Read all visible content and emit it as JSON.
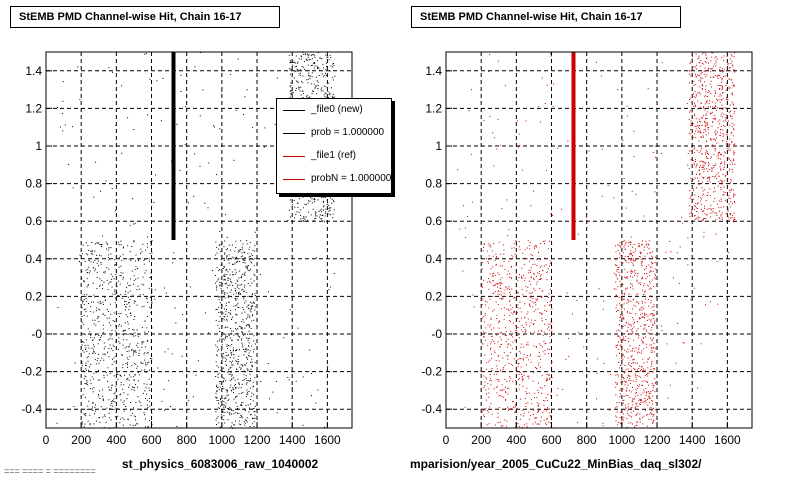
{
  "panels": [
    {
      "title": "StEMB PMD Channel-wise Hit, Chain 16-17",
      "xlabel": "st_physics_6083006_raw_1040002",
      "marker_color": "#000000"
    },
    {
      "title": "StEMB PMD Channel-wise Hit, Chain 16-17",
      "xlabel": "mparision/year_2005_CuCu22_MinBias_daq_sl302/",
      "marker_color": "#cc0000"
    }
  ],
  "legend": {
    "entries": [
      {
        "label": "_file0 (new)",
        "color": "#000000"
      },
      {
        "label": "prob = 1.000000",
        "color": "#000000"
      },
      {
        "label": "_file1 (ref)",
        "color": "#cc0000"
      },
      {
        "label": "probN = 1.000000",
        "color": "#cc0000"
      }
    ]
  },
  "footer_note": "=== ==== = ========",
  "chart_data": [
    {
      "type": "scatter",
      "title": "StEMB PMD Channel-wise Hit, Chain 16-17",
      "xlabel": "st_physics_6083006_raw_1040002",
      "ylabel": "",
      "xlim": [
        0,
        1740
      ],
      "ylim": [
        -0.5,
        1.5
      ],
      "xticks": [
        "0",
        "200",
        "400",
        "600",
        "800",
        "1000",
        "1200",
        "1400",
        "1600"
      ],
      "yticks": [
        "-0.4",
        "-0.2",
        "-0",
        "0.2",
        "0.4",
        "0.6",
        "0.8",
        "1",
        "1.2",
        "1.4"
      ],
      "grid": true,
      "series": [
        {
          "name": "_file0 (new)",
          "color": "#000000",
          "regions": [
            {
              "x": [
                200,
                600
              ],
              "y": [
                -0.5,
                0.5
              ]
            },
            {
              "x": [
                960,
                1190
              ],
              "y": [
                -0.5,
                0.5
              ]
            },
            {
              "x": [
                50,
                1640
              ],
              "y": [
                -0.5,
                1.5
              ],
              "sparse": true
            },
            {
              "x": [
                1380,
                1640
              ],
              "y": [
                0.6,
                1.5
              ]
            }
          ],
          "line": {
            "x": 725,
            "y": [
              0.5,
              1.5
            ]
          }
        }
      ]
    },
    {
      "type": "scatter",
      "title": "StEMB PMD Channel-wise Hit, Chain 16-17",
      "xlabel": "mparision/year_2005_CuCu22_MinBias_daq_sl302/",
      "ylabel": "",
      "xlim": [
        0,
        1740
      ],
      "ylim": [
        -0.5,
        1.5
      ],
      "xticks": [
        "0",
        "200",
        "400",
        "600",
        "800",
        "1000",
        "1200",
        "1400",
        "1600"
      ],
      "yticks": [
        "-0.4",
        "-0.2",
        "-0",
        "0.2",
        "0.4",
        "0.6",
        "0.8",
        "1",
        "1.2",
        "1.4"
      ],
      "grid": true,
      "series": [
        {
          "name": "_file1 (ref)",
          "color": "#cc0000",
          "regions": [
            {
              "x": [
                200,
                600
              ],
              "y": [
                -0.5,
                0.5
              ]
            },
            {
              "x": [
                960,
                1190
              ],
              "y": [
                -0.5,
                0.5
              ]
            },
            {
              "x": [
                50,
                1640
              ],
              "y": [
                -0.5,
                1.5
              ],
              "sparse": true
            },
            {
              "x": [
                1380,
                1640
              ],
              "y": [
                0.6,
                1.5
              ]
            }
          ],
          "line": {
            "x": 725,
            "y": [
              0.5,
              1.5
            ]
          }
        }
      ]
    }
  ]
}
